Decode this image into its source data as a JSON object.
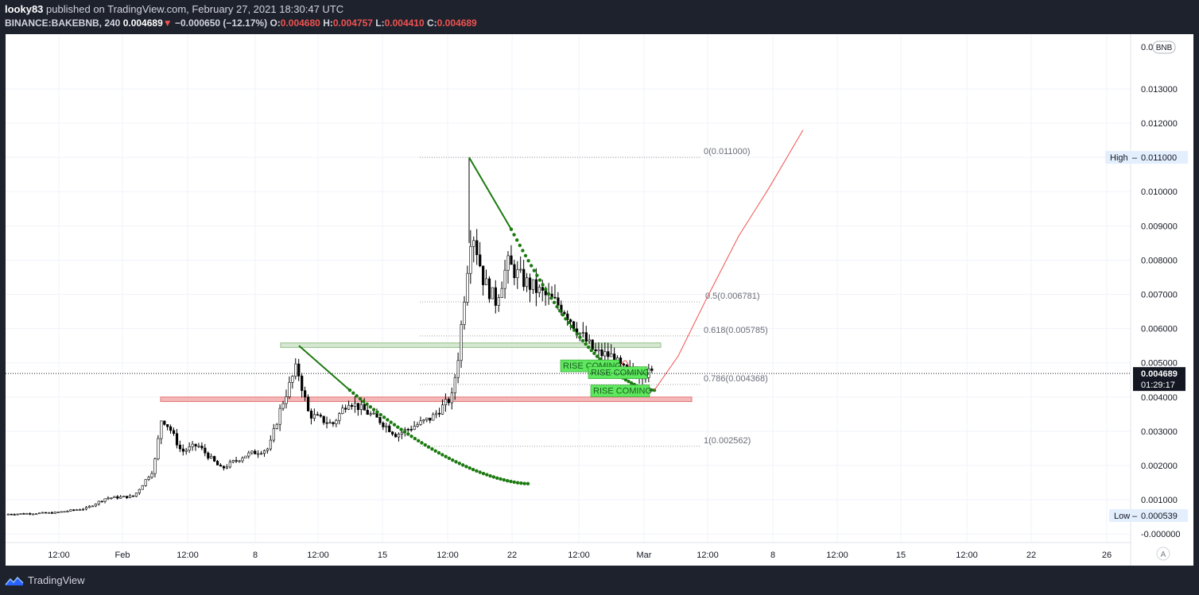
{
  "header": {
    "author": "looky83",
    "published_text": "published on TradingView.com, February 27, 2021 18:30:47 UTC",
    "symbol": "BINANCE:BAKEBNB, 240",
    "last": "0.004689",
    "change_arrow": "▼",
    "change": "−0.000650 (−12.17%)",
    "o_label": "O:",
    "o": "0.004680",
    "h_label": "H:",
    "h": "0.004757",
    "l_label": "L:",
    "l": "0.004410",
    "c_label": "C:",
    "c": "0.004689"
  },
  "footer": {
    "brand": "TradingView"
  },
  "colors": {
    "background": "#ffffff",
    "frame": "#1e222d",
    "candle": "#000000",
    "trend": "#1b7a0f",
    "projection": "#ef5350",
    "support_fill": "#f4b8b8",
    "resistance_fill": "#d7e8d2",
    "label_green": "#5ee85e"
  },
  "chart_data": {
    "type": "candlestick",
    "currency_label": "BNB",
    "y_axis": {
      "range": [
        -0.00025,
        0.0146
      ],
      "ticks": [
        "0.013000",
        "0.012000",
        "0.011000",
        "0.010000",
        "0.009000",
        "0.008000",
        "0.007000",
        "0.006000",
        "0.005000",
        "0.004000",
        "0.003000",
        "0.002000",
        "0.001000",
        "-0.000000"
      ],
      "top_partial": "0.0"
    },
    "x_axis": {
      "labels": [
        "12:00",
        "Feb",
        "12:00",
        "8",
        "12:00",
        "15",
        "12:00",
        "22",
        "12:00",
        "Mar",
        "12:00",
        "8",
        "12:00",
        "15",
        "12:00",
        "22",
        "26"
      ]
    },
    "price_marker": {
      "value": 0.004689,
      "label": "0.004689",
      "countdown": "01:29:17"
    },
    "high_marker": {
      "label": "High",
      "value": "0.011000"
    },
    "low_marker": {
      "label": "Low",
      "value": "0.000539"
    },
    "fib_levels": [
      {
        "label": "0(0.011000)",
        "value": 0.011
      },
      {
        "label": "0.5(0.006781)",
        "value": 0.006781
      },
      {
        "label": "0.618(0.005785)",
        "value": 0.005785
      },
      {
        "label": "0.786(0.004368)",
        "value": 0.004368
      },
      {
        "label": "1(0.002562)",
        "value": 0.002562
      }
    ],
    "zones": [
      {
        "name": "resistance",
        "value_low": 0.00545,
        "value_high": 0.00558
      },
      {
        "name": "support",
        "value_low": 0.00387,
        "value_high": 0.004
      }
    ],
    "annotations": [
      "RISE COMING",
      "RISE COMING",
      "RISE COMING"
    ],
    "auto_label": "A"
  }
}
